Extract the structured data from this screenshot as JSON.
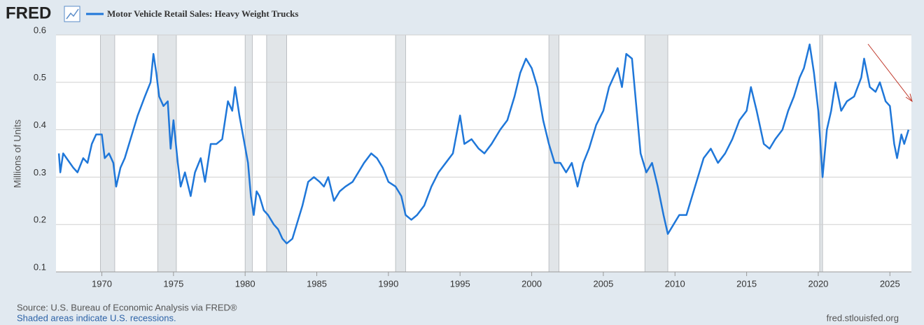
{
  "chart_data": {
    "type": "line",
    "logo": "FRED",
    "y_axis_label": "Millions of Units",
    "source": "Source: U.S. Bureau of Economic Analysis via FRED®",
    "note": "Shaded areas indicate U.S. recessions.",
    "site": "fred.stlouisfed.org",
    "xlim": [
      1966.8,
      2026.5
    ],
    "xticks": [
      1970,
      1975,
      1980,
      1985,
      1990,
      1995,
      2000,
      2005,
      2010,
      2015,
      2020,
      2025
    ],
    "ylim": [
      0.1,
      0.6
    ],
    "yticks": [
      0.1,
      0.2,
      0.3,
      0.4,
      0.5,
      0.6
    ],
    "grid": true,
    "recessions": [
      [
        1969.9,
        1970.9
      ],
      [
        1973.9,
        1975.2
      ],
      [
        1980.0,
        1980.5
      ],
      [
        1981.5,
        1982.9
      ],
      [
        1990.5,
        1991.2
      ],
      [
        2001.2,
        2001.9
      ],
      [
        2007.9,
        2009.5
      ],
      [
        2020.1,
        2020.3
      ]
    ],
    "x": [
      1967.0,
      1967.1,
      1967.3,
      1968.0,
      1968.3,
      1968.7,
      1969.0,
      1969.3,
      1969.6,
      1970.0,
      1970.2,
      1970.5,
      1970.8,
      1971.0,
      1971.3,
      1971.6,
      1972.0,
      1972.5,
      1973.0,
      1973.4,
      1973.6,
      1973.8,
      1974.0,
      1974.3,
      1974.6,
      1974.8,
      1975.0,
      1975.3,
      1975.5,
      1975.8,
      1976.2,
      1976.5,
      1976.9,
      1977.2,
      1977.6,
      1978.0,
      1978.4,
      1978.8,
      1979.1,
      1979.3,
      1979.6,
      1979.9,
      1980.2,
      1980.4,
      1980.6,
      1980.8,
      1981.0,
      1981.3,
      1981.6,
      1982.0,
      1982.3,
      1982.6,
      1982.9,
      1983.3,
      1983.6,
      1984.0,
      1984.4,
      1984.8,
      1985.2,
      1985.5,
      1985.8,
      1986.2,
      1986.6,
      1987.0,
      1987.5,
      1987.9,
      1988.3,
      1988.8,
      1989.2,
      1989.6,
      1990.0,
      1990.5,
      1990.9,
      1991.2,
      1991.6,
      1992.0,
      1992.5,
      1993.0,
      1993.5,
      1994.0,
      1994.5,
      1995.0,
      1995.3,
      1995.8,
      1996.3,
      1996.7,
      1997.2,
      1997.8,
      1998.3,
      1998.8,
      1999.2,
      1999.6,
      2000.0,
      2000.4,
      2000.8,
      2001.2,
      2001.6,
      2002.0,
      2002.4,
      2002.8,
      2003.2,
      2003.6,
      2004.0,
      2004.5,
      2005.0,
      2005.4,
      2005.7,
      2006.0,
      2006.3,
      2006.6,
      2007.0,
      2007.3,
      2007.6,
      2008.0,
      2008.4,
      2008.8,
      2009.2,
      2009.5,
      2009.9,
      2010.3,
      2010.8,
      2011.2,
      2011.6,
      2012.0,
      2012.5,
      2013.0,
      2013.5,
      2014.0,
      2014.5,
      2015.0,
      2015.3,
      2015.7,
      2016.2,
      2016.6,
      2017.0,
      2017.5,
      2017.9,
      2018.3,
      2018.7,
      2019.0,
      2019.4,
      2019.7,
      2020.0,
      2020.3,
      2020.6,
      2020.9,
      2021.2,
      2021.6,
      2022.0,
      2022.5,
      2023.0,
      2023.2,
      2023.6,
      2024.0,
      2024.3,
      2024.7,
      2025.0,
      2025.3,
      2025.5,
      2025.8,
      2026.0,
      2026.3
    ],
    "series": [
      {
        "name": "Motor Vehicle Retail Sales: Heavy Weight Trucks",
        "color": "#1f77d9",
        "values": [
          0.35,
          0.31,
          0.35,
          0.32,
          0.31,
          0.34,
          0.33,
          0.37,
          0.39,
          0.39,
          0.34,
          0.35,
          0.33,
          0.28,
          0.32,
          0.34,
          0.38,
          0.43,
          0.47,
          0.5,
          0.56,
          0.52,
          0.47,
          0.45,
          0.46,
          0.36,
          0.42,
          0.33,
          0.28,
          0.31,
          0.26,
          0.31,
          0.34,
          0.29,
          0.37,
          0.37,
          0.38,
          0.46,
          0.44,
          0.49,
          0.43,
          0.38,
          0.33,
          0.26,
          0.22,
          0.27,
          0.26,
          0.23,
          0.22,
          0.2,
          0.19,
          0.17,
          0.16,
          0.17,
          0.2,
          0.24,
          0.29,
          0.3,
          0.29,
          0.28,
          0.3,
          0.25,
          0.27,
          0.28,
          0.29,
          0.31,
          0.33,
          0.35,
          0.34,
          0.32,
          0.29,
          0.28,
          0.26,
          0.22,
          0.21,
          0.22,
          0.24,
          0.28,
          0.31,
          0.33,
          0.35,
          0.43,
          0.37,
          0.38,
          0.36,
          0.35,
          0.37,
          0.4,
          0.42,
          0.47,
          0.52,
          0.55,
          0.53,
          0.49,
          0.42,
          0.37,
          0.33,
          0.33,
          0.31,
          0.33,
          0.28,
          0.33,
          0.36,
          0.41,
          0.44,
          0.49,
          0.51,
          0.53,
          0.49,
          0.56,
          0.55,
          0.45,
          0.35,
          0.31,
          0.33,
          0.28,
          0.22,
          0.18,
          0.2,
          0.22,
          0.22,
          0.26,
          0.3,
          0.34,
          0.36,
          0.33,
          0.35,
          0.38,
          0.42,
          0.44,
          0.49,
          0.44,
          0.37,
          0.36,
          0.38,
          0.4,
          0.44,
          0.47,
          0.51,
          0.53,
          0.58,
          0.52,
          0.44,
          0.3,
          0.4,
          0.44,
          0.5,
          0.44,
          0.46,
          0.47,
          0.51,
          0.55,
          0.49,
          0.48,
          0.5,
          0.46,
          0.45,
          0.37,
          0.34,
          0.39,
          0.37,
          0.4
        ]
      }
    ]
  }
}
